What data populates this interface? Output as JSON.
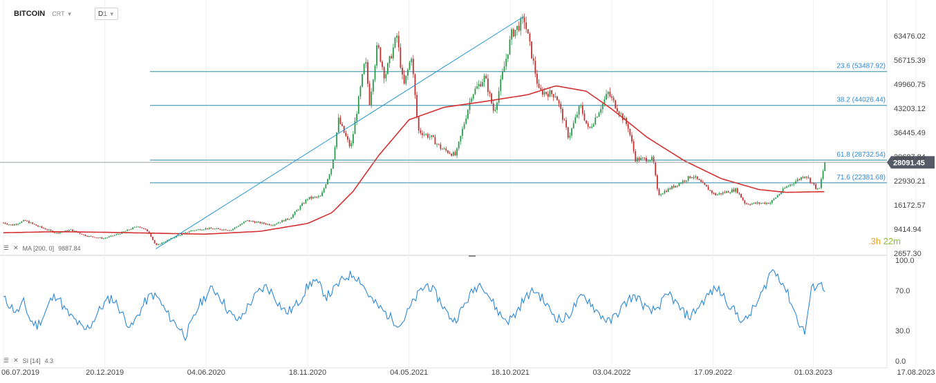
{
  "header": {
    "symbol": "BITCOIN",
    "instrument_type": "CRT",
    "timeframe": "D1"
  },
  "indicators": {
    "ma": {
      "label": "MA [200,  0]",
      "value": "9887.84"
    },
    "rsi": {
      "label": "SI [14]",
      "value": "4.3"
    }
  },
  "timer": {
    "hours": ".3h",
    "minutes": "22m"
  },
  "colors": {
    "candle_up": "#2a9a4a",
    "candle_down": "#c23030",
    "ma_line": "#d43030",
    "rsi_line": "#2b88d8",
    "fib_line": "#2a8aa8",
    "price_tag": "#555b66",
    "trendline": "#2196d6"
  },
  "chart_data": [
    {
      "type": "candlestick",
      "title": "BITCOIN",
      "price_axis_ticks": [
        "63476.02",
        "56715.39",
        "49960.75",
        "43203.12",
        "36445.49",
        "29687.84",
        "22930.21",
        "16172.57",
        "9414.94",
        "2657.30"
      ],
      "price_axis_tick_values": [
        63476.02,
        56715.39,
        49960.75,
        43203.12,
        36445.49,
        29687.84,
        22930.21,
        16172.57,
        9414.94,
        2657.3
      ],
      "ylim": [
        2657.3,
        70000
      ],
      "x_ticks": [
        "06.07.2019",
        "20.12.2019",
        "04.06.2020",
        "18.11.2020",
        "04.05.2021",
        "18.10.2021",
        "03.04.2022",
        "17.09.2022",
        "01.03.2023",
        "17.08.2023"
      ],
      "x_tick_dates": [
        "2019-07-06",
        "2019-12-20",
        "2020-06-04",
        "2020-11-18",
        "2021-05-04",
        "2021-10-18",
        "2022-04-03",
        "2022-09-17",
        "2023-03-01",
        "2023-08-17"
      ],
      "current_price": {
        "label": "28091.45",
        "value": 28091.45
      },
      "fib_levels": [
        {
          "label": "23.6 (53487.92)",
          "value": 53487.92
        },
        {
          "label": "38.2 (44026.44)",
          "value": 44026.44
        },
        {
          "label": "61.8 (28732.54)",
          "value": 28732.54
        },
        {
          "label": "71.6 (22381.68)",
          "value": 22381.68
        }
      ],
      "trendline": {
        "from": {
          "date": "2020-03-13",
          "price": 3900
        },
        "to": {
          "date": "2021-11-10",
          "price": 69000
        }
      },
      "price_path": [
        [
          "2019-07-06",
          11200
        ],
        [
          "2019-07-20",
          10500
        ],
        [
          "2019-08-10",
          11800
        ],
        [
          "2019-09-01",
          10200
        ],
        [
          "2019-10-01",
          8300
        ],
        [
          "2019-10-25",
          9200
        ],
        [
          "2019-11-20",
          7500
        ],
        [
          "2019-12-18",
          6800
        ],
        [
          "2020-01-10",
          8000
        ],
        [
          "2020-02-13",
          10300
        ],
        [
          "2020-03-01",
          8700
        ],
        [
          "2020-03-13",
          4800
        ],
        [
          "2020-04-10",
          7000
        ],
        [
          "2020-05-10",
          9000
        ],
        [
          "2020-06-04",
          9600
        ],
        [
          "2020-07-15",
          9200
        ],
        [
          "2020-08-10",
          11800
        ],
        [
          "2020-09-20",
          10600
        ],
        [
          "2020-10-20",
          12500
        ],
        [
          "2020-11-18",
          18000
        ],
        [
          "2020-12-10",
          18500
        ],
        [
          "2020-12-28",
          27000
        ],
        [
          "2021-01-08",
          40000
        ],
        [
          "2021-01-28",
          32000
        ],
        [
          "2021-02-21",
          57000
        ],
        [
          "2021-02-28",
          45000
        ],
        [
          "2021-03-13",
          61000
        ],
        [
          "2021-03-25",
          52000
        ],
        [
          "2021-04-14",
          63500
        ],
        [
          "2021-04-25",
          49000
        ],
        [
          "2021-05-08",
          58000
        ],
        [
          "2021-05-19",
          37000
        ],
        [
          "2021-06-10",
          35000
        ],
        [
          "2021-06-26",
          32000
        ],
        [
          "2021-07-20",
          30000
        ],
        [
          "2021-08-15",
          47000
        ],
        [
          "2021-09-06",
          52000
        ],
        [
          "2021-09-21",
          42000
        ],
        [
          "2021-10-20",
          64000
        ],
        [
          "2021-11-10",
          68000
        ],
        [
          "2021-11-26",
          55000
        ],
        [
          "2021-12-04",
          48000
        ],
        [
          "2022-01-01",
          47000
        ],
        [
          "2022-01-22",
          35000
        ],
        [
          "2022-02-10",
          44000
        ],
        [
          "2022-02-24",
          37000
        ],
        [
          "2022-03-28",
          47500
        ],
        [
          "2022-04-30",
          38000
        ],
        [
          "2022-05-12",
          29000
        ],
        [
          "2022-06-10",
          29000
        ],
        [
          "2022-06-18",
          19000
        ],
        [
          "2022-07-10",
          21000
        ],
        [
          "2022-08-14",
          24400
        ],
        [
          "2022-09-20",
          19000
        ],
        [
          "2022-10-25",
          20500
        ],
        [
          "2022-11-09",
          16500
        ],
        [
          "2022-12-20",
          16800
        ],
        [
          "2023-01-14",
          21000
        ],
        [
          "2023-02-16",
          24600
        ],
        [
          "2023-03-10",
          20000
        ],
        [
          "2023-03-20",
          28100
        ]
      ],
      "ma_path": [
        [
          "2019-07-06",
          8400
        ],
        [
          "2019-10-01",
          8700
        ],
        [
          "2020-01-01",
          8500
        ],
        [
          "2020-04-01",
          8200
        ],
        [
          "2020-06-01",
          8000
        ],
        [
          "2020-09-01",
          8800
        ],
        [
          "2020-11-18",
          11000
        ],
        [
          "2020-12-28",
          14000
        ],
        [
          "2021-02-01",
          20000
        ],
        [
          "2021-03-15",
          30000
        ],
        [
          "2021-05-04",
          40000
        ],
        [
          "2021-07-01",
          43500
        ],
        [
          "2021-09-01",
          45000
        ],
        [
          "2021-11-15",
          47000
        ],
        [
          "2022-01-01",
          49500
        ],
        [
          "2022-02-20",
          48000
        ],
        [
          "2022-04-03",
          43000
        ],
        [
          "2022-06-01",
          35000
        ],
        [
          "2022-08-01",
          28500
        ],
        [
          "2022-10-01",
          23500
        ],
        [
          "2022-12-01",
          20500
        ],
        [
          "2023-01-15",
          19700
        ],
        [
          "2023-03-20",
          19900
        ]
      ]
    },
    {
      "type": "line",
      "title": "",
      "series": [
        {
          "name": "",
          "values": [
            62,
            55,
            48,
            58,
            40,
            35,
            45,
            60,
            66,
            52,
            44,
            38,
            30,
            36,
            48,
            57,
            63,
            55,
            42,
            33,
            46,
            58,
            66,
            62,
            50,
            41,
            34,
            25,
            38,
            55,
            64,
            72,
            66,
            54,
            44,
            40,
            51,
            61,
            69,
            74,
            67,
            56,
            48,
            52,
            60,
            72,
            80,
            74,
            64,
            70,
            78,
            84,
            86,
            80,
            68,
            58,
            52,
            46,
            40,
            36,
            48,
            60,
            70,
            76,
            68,
            58,
            46,
            40,
            50,
            62,
            72,
            78,
            66,
            54,
            44,
            40,
            46,
            58,
            66,
            70,
            62,
            52,
            44,
            40,
            46,
            56,
            64,
            60,
            50,
            44,
            38,
            46,
            54,
            62,
            64,
            56,
            48,
            52,
            60,
            66,
            56,
            48,
            44,
            52,
            60,
            68,
            72,
            64,
            54,
            46,
            38,
            48,
            58,
            72,
            90,
            86,
            74,
            58,
            40,
            28,
            70,
            78,
            72
          ]
        }
      ],
      "ylim": [
        0,
        100
      ],
      "y_ticks": [
        "100.0",
        "70.0",
        "30.0",
        "0.0"
      ],
      "y_tick_values": [
        100,
        70,
        30,
        0
      ]
    }
  ]
}
